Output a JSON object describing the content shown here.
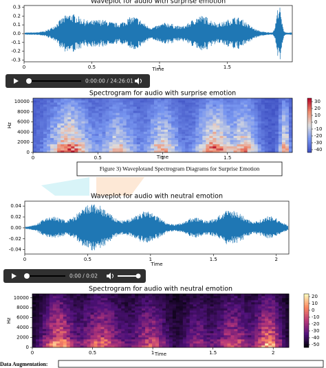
{
  "figures": [
    {
      "type": "waveplot",
      "title": "Waveplot for audio with surprise emotion",
      "xlabel": "Time",
      "color": "#1f77b4",
      "xlim": [
        0,
        1.98
      ],
      "ylim": [
        -0.32,
        0.32
      ],
      "xticks": [
        0,
        0.5,
        1,
        1.5
      ],
      "yticks": [
        0.3,
        0.2,
        0.1,
        {
          "value": 0,
          "label": "0.0"
        },
        -0.1,
        -0.2,
        -0.3
      ]
    },
    {
      "type": "player",
      "time": "0:00:00 / 24:26:01"
    },
    {
      "type": "spectrogram",
      "title": "Spectrogram for audio with surprise emotion",
      "xlabel": "Time",
      "ylabel": "Hz",
      "colormap": "coolwarm",
      "xlim": [
        0,
        2.0
      ],
      "ylim": [
        0,
        10700
      ],
      "xticks": [
        0,
        0.5,
        1,
        1.5
      ],
      "yticks": [
        0,
        2000,
        4000,
        6000,
        8000,
        10000
      ],
      "clim": [
        -44,
        35
      ],
      "cticks": [
        30,
        20,
        10,
        0,
        -10,
        -20,
        -30,
        -40
      ]
    },
    {
      "type": "waveplot",
      "title": "Waveplot for audio with neutral emotion",
      "xlabel": "Time",
      "color": "#1f77b4",
      "xlim": [
        0,
        2.1
      ],
      "ylim": [
        -0.048,
        0.049
      ],
      "xticks": [
        0,
        0.5,
        1,
        1.5,
        2
      ],
      "yticks": [
        0.04,
        0.02,
        {
          "value": 0,
          "label": "0.00"
        },
        -0.02,
        -0.04
      ]
    },
    {
      "type": "player",
      "time": "0:00 / 0:02"
    },
    {
      "type": "spectrogram",
      "title": "Spectrogram for audio with neutral emotion",
      "xlabel": "Time",
      "ylabel": "Hz",
      "colormap": "magma",
      "xlim": [
        0,
        2.13
      ],
      "ylim": [
        0,
        10800
      ],
      "xticks": [
        0,
        0.5,
        1,
        1.5,
        2
      ],
      "yticks": [
        0,
        2000,
        4000,
        6000,
        8000,
        10000
      ],
      "clim": [
        -54,
        24
      ],
      "cticks": [
        20,
        10,
        0,
        -10,
        -20,
        -30,
        -40,
        -50
      ]
    }
  ],
  "caption": "Figure 3) Waveplotand  Spectrogram Diagrams for Surprise Emotion",
  "footer": {
    "heading": "Data Augmentation:"
  }
}
